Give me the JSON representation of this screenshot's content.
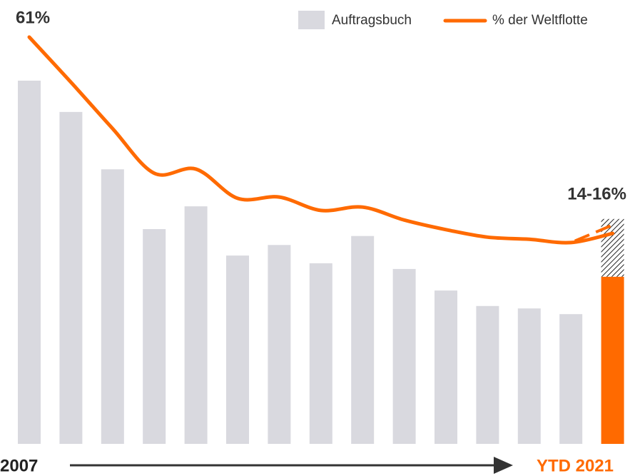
{
  "chart_data": {
    "type": "bar_line",
    "categories": [
      "2007",
      null,
      null,
      null,
      null,
      null,
      null,
      null,
      null,
      null,
      null,
      null,
      null,
      null,
      "YTD 2021"
    ],
    "ylim": [
      0,
      100
    ],
    "y2lim": [
      -36.4,
      61
    ],
    "bars": {
      "name": "Auftragsbuch",
      "color": "#d9d9df",
      "highlight_color": "#ff6a00",
      "values": [
        89.3,
        81.6,
        67.5,
        52.8,
        58.4,
        46.3,
        48.9,
        44.4,
        51.1,
        43.0,
        37.7,
        33.9,
        33.3,
        31.9,
        41.1
      ],
      "projected": [
        null,
        null,
        null,
        null,
        null,
        null,
        null,
        null,
        null,
        null,
        null,
        null,
        null,
        null,
        55.3
      ]
    },
    "line": {
      "name": "% der Weltflotte",
      "color": "#ff6a00",
      "axis": "y2",
      "values": [
        61,
        50.2,
        39.1,
        28.4,
        29.4,
        22.4,
        22.7,
        19.5,
        20.3,
        17.2,
        14.9,
        13.1,
        12.6,
        11.8,
        14
      ],
      "high_values": [
        null,
        null,
        null,
        null,
        null,
        null,
        null,
        null,
        null,
        null,
        null,
        null,
        null,
        11.8,
        16
      ],
      "value_labels": [
        "61%",
        null,
        null,
        null,
        null,
        null,
        null,
        null,
        null,
        null,
        null,
        null,
        null,
        null,
        "14-16%"
      ]
    }
  }
}
